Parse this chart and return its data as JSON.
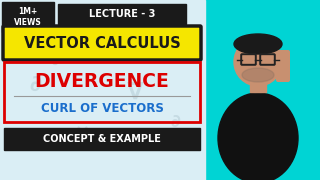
{
  "bg_color": "#daeef5",
  "cyan_right_color": "#00d4d4",
  "lecture_text": "LECTURE - 3",
  "lecture_bg": "#1a1a1a",
  "lecture_text_color": "#ffffff",
  "vector_calculus_text": "VECTOR CALCULUS",
  "vector_calculus_bg": "#f5e600",
  "vector_calculus_border": "#1a1a1a",
  "divergence_text": "DIVERGENCE",
  "divergence_color": "#dd0000",
  "curl_text": "CURL OF VECTORS",
  "curl_color": "#1a6ecc",
  "concept_text": "CONCEPT & EXAMPLE",
  "concept_bg": "#1a1a1a",
  "concept_text_color": "#ffffff",
  "views_text": "1M+\nVIEWS",
  "views_bg": "#1a1a1a",
  "views_text_color": "#ffffff",
  "red_box_color": "#dd0000",
  "watermark_color": "#b8cfd8",
  "skin_color": "#c89070",
  "hair_color": "#1a1a1a",
  "body_color": "#111111"
}
